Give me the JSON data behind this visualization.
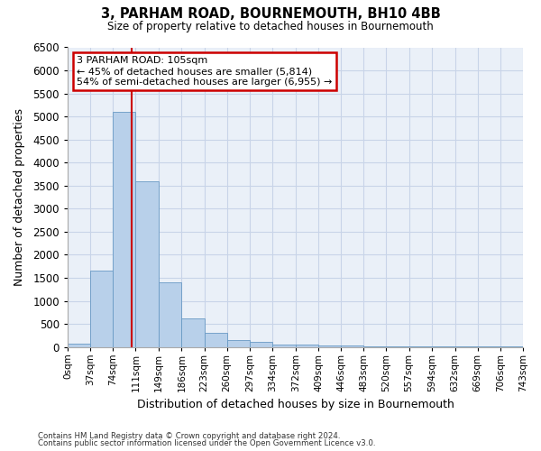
{
  "title": "3, PARHAM ROAD, BOURNEMOUTH, BH10 4BB",
  "subtitle": "Size of property relative to detached houses in Bournemouth",
  "xlabel": "Distribution of detached houses by size in Bournemouth",
  "ylabel": "Number of detached properties",
  "footnote1": "Contains HM Land Registry data © Crown copyright and database right 2024.",
  "footnote2": "Contains public sector information licensed under the Open Government Licence v3.0.",
  "annotation_line1": "3 PARHAM ROAD: 105sqm",
  "annotation_line2": "← 45% of detached houses are smaller (5,814)",
  "annotation_line3": "54% of semi-detached houses are larger (6,955) →",
  "bar_color": "#b8d0ea",
  "bar_edge_color": "#6899c4",
  "grid_color": "#c8d4e8",
  "vline_color": "#cc0000",
  "annotation_box_color": "#ffffff",
  "annotation_box_edge": "#cc0000",
  "bin_edges": [
    0,
    37,
    74,
    111,
    149,
    186,
    223,
    260,
    297,
    334,
    372,
    409,
    446,
    483,
    520,
    557,
    594,
    632,
    669,
    706,
    743
  ],
  "bin_labels": [
    "0sqm",
    "37sqm",
    "74sqm",
    "111sqm",
    "149sqm",
    "186sqm",
    "223sqm",
    "260sqm",
    "297sqm",
    "334sqm",
    "372sqm",
    "409sqm",
    "446sqm",
    "483sqm",
    "520sqm",
    "557sqm",
    "594sqm",
    "632sqm",
    "669sqm",
    "706sqm",
    "743sqm"
  ],
  "bar_heights": [
    75,
    1650,
    5100,
    3600,
    1400,
    620,
    310,
    140,
    100,
    60,
    50,
    40,
    40,
    20,
    15,
    10,
    8,
    5,
    5,
    5,
    0
  ],
  "vline_x": 105,
  "ylim": [
    0,
    6500
  ],
  "yticks": [
    0,
    500,
    1000,
    1500,
    2000,
    2500,
    3000,
    3500,
    4000,
    4500,
    5000,
    5500,
    6000,
    6500
  ],
  "background_color": "#ffffff",
  "plot_bg_color": "#eaf0f8"
}
